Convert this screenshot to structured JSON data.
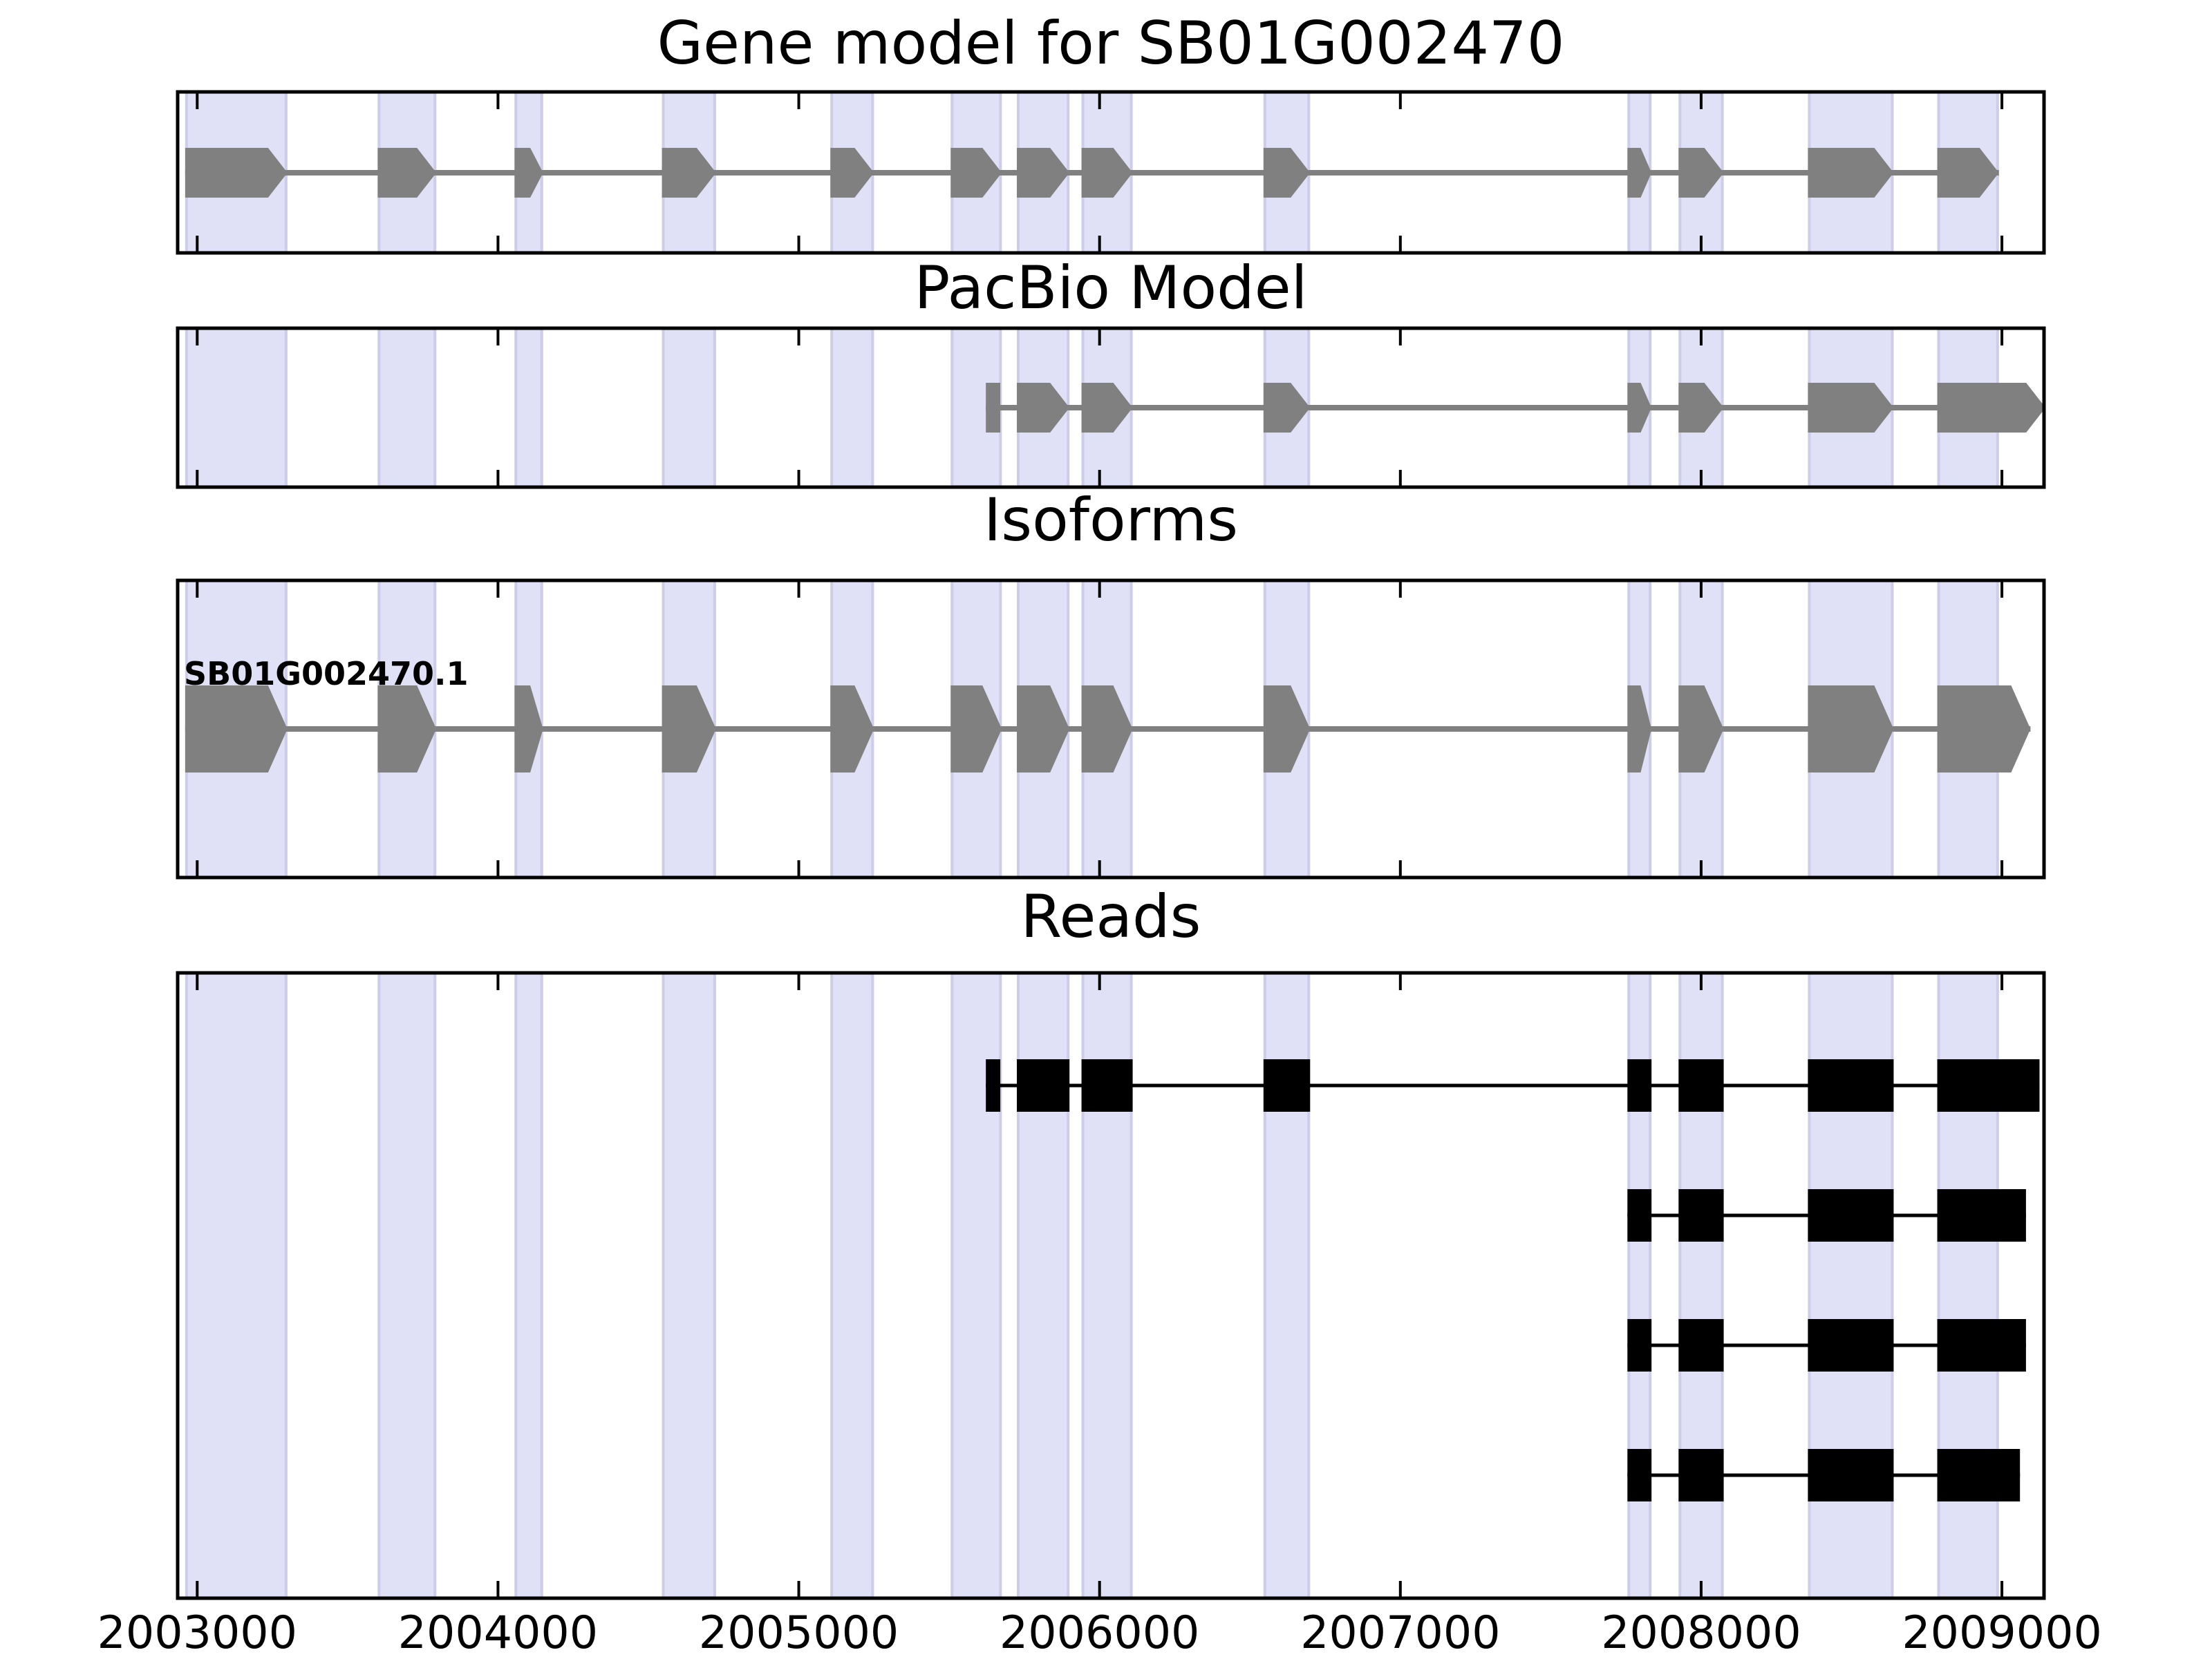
{
  "colors": {
    "background": "#ffffff",
    "band_fill": "#e0e0f6",
    "band_edge": "#cdcdea",
    "gene_color": "#808080",
    "read_color": "#000000",
    "axis_color": "#000000"
  },
  "x_axis": {
    "tick_labels": [
      "2003000",
      "2004000",
      "2005000",
      "2006000",
      "2007000",
      "2008000",
      "2009000"
    ]
  },
  "chart_data": {
    "type": "gene-model-track-plot",
    "title": "Gene model for SB01G002470",
    "xlim": [
      2002935,
      2009140
    ],
    "xticks": [
      2003000,
      2004000,
      2005000,
      2006000,
      2007000,
      2008000,
      2009000
    ],
    "arrow_direction": "right",
    "highlight_bands": [
      [
        2002960,
        2003300
      ],
      [
        2003600,
        2003795
      ],
      [
        2004055,
        2004150
      ],
      [
        2004545,
        2004725
      ],
      [
        2005105,
        2005250
      ],
      [
        2005505,
        2005675
      ],
      [
        2005725,
        2005900
      ],
      [
        2005940,
        2006110
      ],
      [
        2006545,
        2006700
      ],
      [
        2007755,
        2007835
      ],
      [
        2007925,
        2008075
      ],
      [
        2008355,
        2008640
      ],
      [
        2008785,
        2008990
      ]
    ],
    "panels": [
      {
        "id": "gene-model",
        "title": "Gene model for SB01G002470",
        "track_type": "transcript",
        "color": "#808080",
        "exons": [
          {
            "start": 2002960,
            "end": 2003300,
            "arrow": true
          },
          {
            "start": 2003600,
            "end": 2003795,
            "arrow": true
          },
          {
            "start": 2004055,
            "end": 2004150,
            "arrow": true
          },
          {
            "start": 2004545,
            "end": 2004725,
            "arrow": true
          },
          {
            "start": 2005105,
            "end": 2005250,
            "arrow": true
          },
          {
            "start": 2005505,
            "end": 2005675,
            "arrow": true
          },
          {
            "start": 2005725,
            "end": 2005900,
            "arrow": true
          },
          {
            "start": 2005940,
            "end": 2006110,
            "arrow": true
          },
          {
            "start": 2006545,
            "end": 2006700,
            "arrow": true
          },
          {
            "start": 2007755,
            "end": 2007835,
            "arrow": true
          },
          {
            "start": 2007925,
            "end": 2008075,
            "arrow": true
          },
          {
            "start": 2008355,
            "end": 2008640,
            "arrow": true
          },
          {
            "start": 2008785,
            "end": 2008990,
            "arrow": true
          }
        ]
      },
      {
        "id": "pacbio-model",
        "title": "PacBio Model",
        "track_type": "transcript",
        "color": "#808080",
        "exons": [
          {
            "start": 2005622,
            "end": 2005670,
            "arrow": false
          },
          {
            "start": 2005725,
            "end": 2005900,
            "arrow": true
          },
          {
            "start": 2005940,
            "end": 2006110,
            "arrow": true
          },
          {
            "start": 2006545,
            "end": 2006700,
            "arrow": true
          },
          {
            "start": 2007755,
            "end": 2007835,
            "arrow": true
          },
          {
            "start": 2007925,
            "end": 2008075,
            "arrow": true
          },
          {
            "start": 2008355,
            "end": 2008640,
            "arrow": true
          },
          {
            "start": 2008785,
            "end": 2009145,
            "arrow": true
          }
        ]
      },
      {
        "id": "isoforms",
        "title": "Isoforms",
        "track_type": "transcript-list",
        "color": "#808080",
        "transcripts": [
          {
            "label": "SB01G002470.1",
            "exons": [
              {
                "start": 2002960,
                "end": 2003300,
                "arrow": true
              },
              {
                "start": 2003600,
                "end": 2003795,
                "arrow": true
              },
              {
                "start": 2004055,
                "end": 2004150,
                "arrow": true
              },
              {
                "start": 2004545,
                "end": 2004725,
                "arrow": true
              },
              {
                "start": 2005105,
                "end": 2005250,
                "arrow": true
              },
              {
                "start": 2005505,
                "end": 2005675,
                "arrow": true
              },
              {
                "start": 2005725,
                "end": 2005900,
                "arrow": true
              },
              {
                "start": 2005940,
                "end": 2006110,
                "arrow": true
              },
              {
                "start": 2006545,
                "end": 2006700,
                "arrow": true
              },
              {
                "start": 2007755,
                "end": 2007835,
                "arrow": true
              },
              {
                "start": 2007925,
                "end": 2008075,
                "arrow": true
              },
              {
                "start": 2008355,
                "end": 2008640,
                "arrow": true
              },
              {
                "start": 2008785,
                "end": 2009095,
                "arrow": true
              }
            ]
          }
        ]
      },
      {
        "id": "reads",
        "title": "Reads",
        "track_type": "reads",
        "color": "#000000",
        "reads": [
          {
            "exons": [
              {
                "start": 2005622,
                "end": 2005670,
                "arrow": false
              },
              {
                "start": 2005725,
                "end": 2005900,
                "arrow": false
              },
              {
                "start": 2005940,
                "end": 2006110,
                "arrow": false
              },
              {
                "start": 2006545,
                "end": 2006700,
                "arrow": false
              },
              {
                "start": 2007755,
                "end": 2007835,
                "arrow": false
              },
              {
                "start": 2007925,
                "end": 2008075,
                "arrow": false
              },
              {
                "start": 2008355,
                "end": 2008640,
                "arrow": false
              },
              {
                "start": 2008785,
                "end": 2009125,
                "arrow": false
              }
            ]
          },
          {
            "exons": [
              {
                "start": 2007755,
                "end": 2007835,
                "arrow": false
              },
              {
                "start": 2007925,
                "end": 2008075,
                "arrow": false
              },
              {
                "start": 2008355,
                "end": 2008640,
                "arrow": false
              },
              {
                "start": 2008785,
                "end": 2009080,
                "arrow": false
              }
            ]
          },
          {
            "exons": [
              {
                "start": 2007755,
                "end": 2007835,
                "arrow": false
              },
              {
                "start": 2007925,
                "end": 2008075,
                "arrow": false
              },
              {
                "start": 2008355,
                "end": 2008640,
                "arrow": false
              },
              {
                "start": 2008785,
                "end": 2009080,
                "arrow": false
              }
            ]
          },
          {
            "exons": [
              {
                "start": 2007755,
                "end": 2007835,
                "arrow": false
              },
              {
                "start": 2007925,
                "end": 2008075,
                "arrow": false
              },
              {
                "start": 2008355,
                "end": 2008640,
                "arrow": false
              },
              {
                "start": 2008785,
                "end": 2009060,
                "arrow": false
              }
            ]
          }
        ]
      }
    ]
  }
}
